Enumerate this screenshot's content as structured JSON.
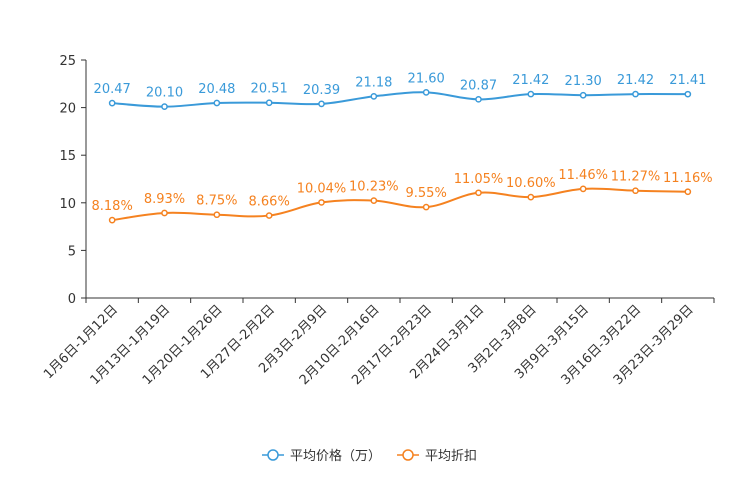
{
  "chart_data": {
    "type": "line",
    "categories": [
      "1月6日-1月12日",
      "1月13日-1月19日",
      "1月20日-1月26日",
      "1月27日-2月2日",
      "2月3日-2月9日",
      "2月10日-2月16日",
      "2月17日-2月23日",
      "2月24日-3月1日",
      "3月2日-3月8日",
      "3月9日-3月15日",
      "3月16日-3月22日",
      "3月23日-3月29日"
    ],
    "ylim": [
      0,
      25
    ],
    "yticks": [
      "0",
      "5",
      "10",
      "15",
      "20",
      "25"
    ],
    "series": [
      {
        "name": "平均价格（万）",
        "color": "#3a9ad9",
        "values": [
          20.47,
          20.1,
          20.48,
          20.51,
          20.39,
          21.18,
          21.6,
          20.87,
          21.42,
          21.3,
          21.42,
          21.41
        ],
        "labels": [
          "20.47",
          "20.10",
          "20.48",
          "20.51",
          "20.39",
          "21.18",
          "21.60",
          "20.87",
          "21.42",
          "21.30",
          "21.42",
          "21.41"
        ]
      },
      {
        "name": "平均折扣",
        "color": "#f58220",
        "values": [
          8.18,
          8.93,
          8.75,
          8.66,
          10.04,
          10.23,
          9.55,
          11.05,
          10.6,
          11.46,
          11.27,
          11.16
        ],
        "labels": [
          "8.18%",
          "8.93%",
          "8.75%",
          "8.66%",
          "10.04%",
          "10.23%",
          "9.55%",
          "11.05%",
          "10.60%",
          "11.46%",
          "11.27%",
          "11.16%"
        ]
      }
    ],
    "legend_position": "bottom-center"
  }
}
